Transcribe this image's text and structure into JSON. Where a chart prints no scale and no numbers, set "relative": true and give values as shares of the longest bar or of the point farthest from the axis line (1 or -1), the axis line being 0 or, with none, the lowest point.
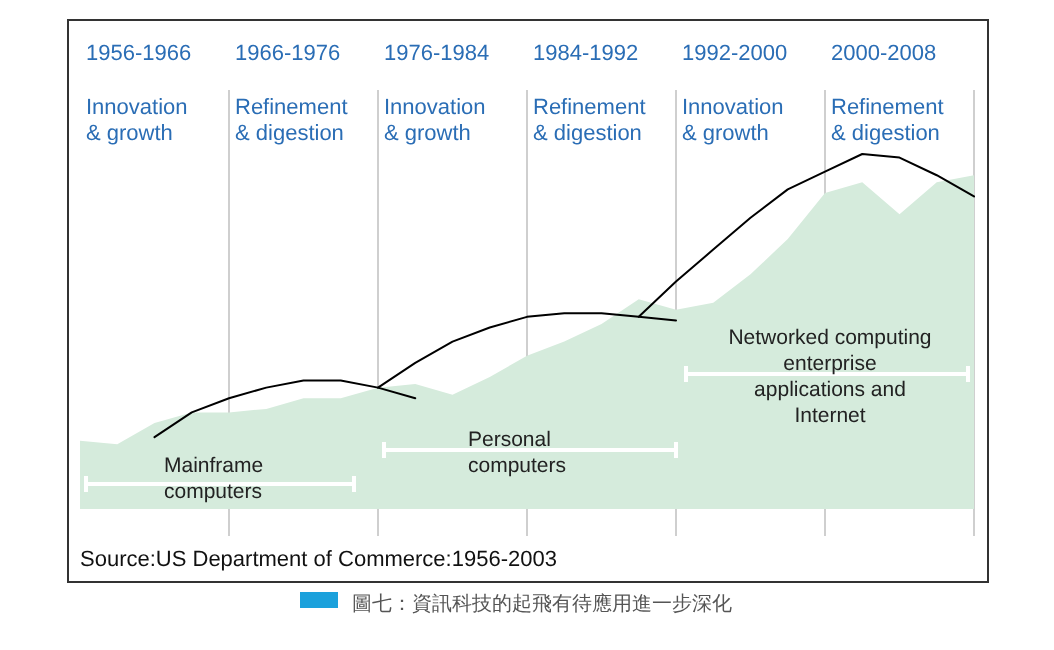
{
  "chart_data": {
    "type": "area",
    "relative": true,
    "categories": [
      null,
      null,
      null,
      null,
      null,
      null,
      null,
      null,
      null,
      null,
      null,
      null,
      null,
      null,
      null,
      null,
      null,
      null,
      null,
      null,
      null,
      null,
      null,
      null,
      null
    ],
    "series": [
      {
        "color": "#d5ebdc",
        "values": [
          0.19,
          0.18,
          0.24,
          0.27,
          0.27,
          0.28,
          0.31,
          0.31,
          0.34,
          0.35,
          0.32,
          0.37,
          0.43,
          0.47,
          0.52,
          0.59,
          0.56,
          0.58,
          0.66,
          0.76,
          0.89,
          0.92,
          0.83,
          0.92,
          0.94
        ]
      },
      {
        "type": "line",
        "color": "#000000",
        "values": [
          null,
          null,
          0.2,
          0.27,
          0.31,
          0.34,
          0.36,
          0.36,
          0.34,
          0.31,
          null,
          null,
          null,
          null,
          null,
          null,
          null,
          null,
          null,
          null,
          null,
          null,
          null,
          null,
          null
        ]
      },
      {
        "type": "line",
        "color": "#000000",
        "values": [
          null,
          null,
          null,
          null,
          null,
          null,
          null,
          null,
          0.34,
          0.41,
          0.47,
          0.51,
          0.54,
          0.55,
          0.55,
          0.54,
          0.53,
          null,
          null,
          null,
          null,
          null,
          null,
          null,
          null
        ]
      },
      {
        "type": "line",
        "color": "#000000",
        "values": [
          null,
          null,
          null,
          null,
          null,
          null,
          null,
          null,
          null,
          null,
          null,
          null,
          null,
          null,
          null,
          0.54,
          0.64,
          0.73,
          0.82,
          0.9,
          0.95,
          1.0,
          0.99,
          0.94,
          0.88
        ]
      }
    ],
    "grid": "x",
    "annotations": [
      "1956-1966",
      "1966-1976",
      "1976-1984",
      "1984-1992",
      "1992-2000",
      "2000-2008",
      "Innovation\n& growth",
      "Refinement\n& digestion",
      "Innovation\n& growth",
      "Refinement\n& digestion",
      "Innovation\n& growth",
      "Refinement\n& digestion",
      "Mainframe\ncomputers",
      "Personal\ncomputers",
      "Networked computing\nenterprise\napplications and\nInternet",
      "Source:US Department of Commerce:1956-2003",
      "圖七：資訊科技的起飛有待應用進一步深化"
    ]
  }
}
